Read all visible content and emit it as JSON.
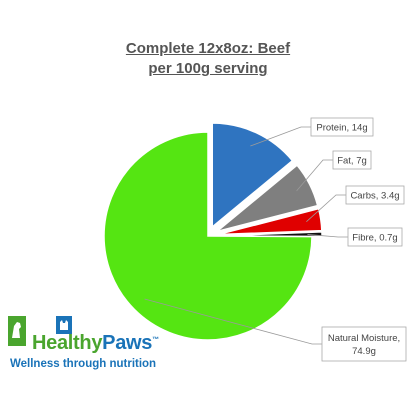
{
  "chart_data": {
    "type": "pie",
    "title": "Complete 12x8oz: Beef",
    "subtitle": "per 100g serving",
    "slices": [
      {
        "label": "Protein, 14g",
        "value": 14,
        "color": "#2f74c0",
        "exploded": true
      },
      {
        "label": "Fat, 7g",
        "value": 7,
        "color": "#7f7f7f",
        "exploded": true
      },
      {
        "label": "Carbs, 3.4g",
        "value": 3.4,
        "color": "#e00000",
        "exploded": true
      },
      {
        "label": "Fibre, 0.7g",
        "value": 0.7,
        "color": "#111111",
        "exploded": true
      },
      {
        "label": "Natural Moisture, 74.9g",
        "value": 74.9,
        "color": "#55e512",
        "exploded": false
      }
    ],
    "start_angle_deg": 0,
    "direction": "clockwise",
    "legend": "none"
  },
  "logo": {
    "name_part1": "Healthy",
    "name_part2": "Paws",
    "trademark": "™",
    "tagline": "Wellness through nutrition",
    "colors": {
      "green": "#4aa52e",
      "blue": "#1a73b8"
    }
  }
}
